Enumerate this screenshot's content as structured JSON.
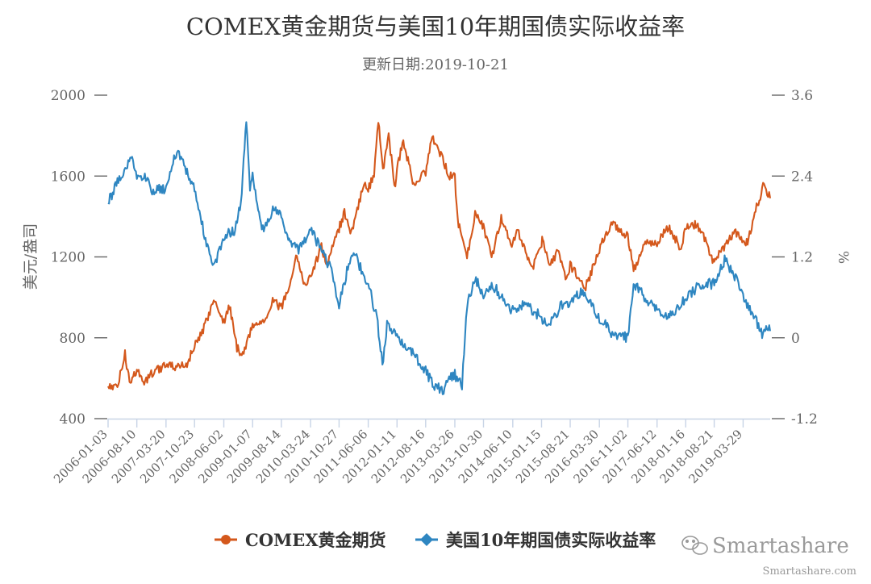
{
  "chart_data": {
    "type": "line",
    "title": "COMEX黄金期货与美国10年期国债实际收益率",
    "subtitle": "更新日期:2019-10-21",
    "ylabel_left": "美元/盎司",
    "ylabel_right": "%",
    "ylim_left": [
      400,
      2000
    ],
    "ylim_right": [
      -1.2,
      3.6
    ],
    "yticks_left": [
      "400",
      "800",
      "1200",
      "1600",
      "2000"
    ],
    "yticks_right": [
      "-1.2",
      "0",
      "1.2",
      "2.4",
      "3.6"
    ],
    "xlim": [
      "2006-01-03",
      "2019-10-21"
    ],
    "x_tick_labels": [
      "2006-01-03",
      "2006-08-10",
      "2007-03-20",
      "2007-10-23",
      "2008-06-02",
      "2009-01-07",
      "2009-08-14",
      "2010-03-24",
      "2010-10-27",
      "2011-06-06",
      "2012-01-11",
      "2012-08-16",
      "2013-03-26",
      "2013-10-30",
      "2014-06-10",
      "2015-01-15",
      "2015-08-21",
      "2016-03-30",
      "2016-11-02",
      "2017-06-12",
      "2018-01-16",
      "2018-08-21",
      "2019-03-29"
    ],
    "legend_position": "bottom",
    "grid": false,
    "series": [
      {
        "name": "COMEX黄金期货",
        "axis": "left",
        "color": "#d4581c",
        "marker": "circle",
        "points": [
          [
            "2006-01-03",
            560
          ],
          [
            "2006-03-15",
            555
          ],
          [
            "2006-05-12",
            720
          ],
          [
            "2006-06-15",
            580
          ],
          [
            "2006-08-10",
            640
          ],
          [
            "2006-10-05",
            575
          ],
          [
            "2006-12-20",
            640
          ],
          [
            "2007-03-20",
            660
          ],
          [
            "2007-06-20",
            655
          ],
          [
            "2007-08-20",
            665
          ],
          [
            "2007-10-23",
            760
          ],
          [
            "2007-12-20",
            820
          ],
          [
            "2008-03-17",
            990
          ],
          [
            "2008-06-02",
            880
          ],
          [
            "2008-07-15",
            960
          ],
          [
            "2008-09-10",
            750
          ],
          [
            "2008-10-24",
            720
          ],
          [
            "2009-01-07",
            860
          ],
          [
            "2009-04-10",
            890
          ],
          [
            "2009-06-01",
            980
          ],
          [
            "2009-08-14",
            950
          ],
          [
            "2009-11-01",
            1100
          ],
          [
            "2009-12-03",
            1220
          ],
          [
            "2010-02-05",
            1060
          ],
          [
            "2010-03-24",
            1100
          ],
          [
            "2010-06-15",
            1250
          ],
          [
            "2010-07-28",
            1160
          ],
          [
            "2010-10-27",
            1340
          ],
          [
            "2010-12-07",
            1420
          ],
          [
            "2011-01-28",
            1320
          ],
          [
            "2011-04-28",
            1550
          ],
          [
            "2011-06-06",
            1540
          ],
          [
            "2011-07-20",
            1600
          ],
          [
            "2011-08-22",
            1880
          ],
          [
            "2011-09-10",
            1760
          ],
          [
            "2011-09-26",
            1620
          ],
          [
            "2011-11-08",
            1790
          ],
          [
            "2011-12-29",
            1540
          ],
          [
            "2012-01-11",
            1640
          ],
          [
            "2012-02-28",
            1780
          ],
          [
            "2012-05-16",
            1550
          ],
          [
            "2012-08-16",
            1620
          ],
          [
            "2012-10-05",
            1790
          ],
          [
            "2012-12-10",
            1700
          ],
          [
            "2013-02-15",
            1600
          ],
          [
            "2013-03-26",
            1600
          ],
          [
            "2013-04-16",
            1380
          ],
          [
            "2013-06-27",
            1200
          ],
          [
            "2013-08-27",
            1420
          ],
          [
            "2013-10-30",
            1350
          ],
          [
            "2013-12-31",
            1200
          ],
          [
            "2014-03-14",
            1390
          ],
          [
            "2014-06-10",
            1260
          ],
          [
            "2014-07-10",
            1340
          ],
          [
            "2014-11-07",
            1140
          ],
          [
            "2015-01-15",
            1260
          ],
          [
            "2015-01-23",
            1300
          ],
          [
            "2015-03-17",
            1150
          ],
          [
            "2015-05-18",
            1230
          ],
          [
            "2015-07-24",
            1080
          ],
          [
            "2015-08-21",
            1160
          ],
          [
            "2015-12-17",
            1050
          ],
          [
            "2016-03-30",
            1240
          ],
          [
            "2016-07-06",
            1370
          ],
          [
            "2016-11-02",
            1300
          ],
          [
            "2016-12-15",
            1130
          ],
          [
            "2017-02-27",
            1260
          ],
          [
            "2017-06-12",
            1270
          ],
          [
            "2017-09-08",
            1350
          ],
          [
            "2017-12-12",
            1240
          ],
          [
            "2018-01-16",
            1340
          ],
          [
            "2018-04-11",
            1360
          ],
          [
            "2018-06-15",
            1280
          ],
          [
            "2018-08-16",
            1175
          ],
          [
            "2018-08-21",
            1190
          ],
          [
            "2019-01-31",
            1320
          ],
          [
            "2019-03-29",
            1290
          ],
          [
            "2019-05-02",
            1270
          ],
          [
            "2019-06-25",
            1420
          ],
          [
            "2019-09-04",
            1560
          ],
          [
            "2019-10-21",
            1490
          ]
        ]
      },
      {
        "name": "美国10年期国债实际收益率",
        "axis": "right",
        "color": "#2e86c1",
        "marker": "diamond",
        "points": [
          [
            "2006-01-03",
            2.0
          ],
          [
            "2006-03-15",
            2.3
          ],
          [
            "2006-06-28",
            2.7
          ],
          [
            "2006-08-10",
            2.4
          ],
          [
            "2006-10-10",
            2.4
          ],
          [
            "2006-12-05",
            2.2
          ],
          [
            "2007-03-20",
            2.2
          ],
          [
            "2007-06-12",
            2.8
          ],
          [
            "2007-08-20",
            2.5
          ],
          [
            "2007-10-23",
            2.2
          ],
          [
            "2008-01-22",
            1.4
          ],
          [
            "2008-03-17",
            1.05
          ],
          [
            "2008-06-02",
            1.5
          ],
          [
            "2008-08-20",
            1.6
          ],
          [
            "2008-10-10",
            2.0
          ],
          [
            "2008-11-20",
            3.2
          ],
          [
            "2008-12-18",
            2.2
          ],
          [
            "2009-01-07",
            2.4
          ],
          [
            "2009-03-18",
            1.6
          ],
          [
            "2009-06-10",
            1.9
          ],
          [
            "2009-08-14",
            1.8
          ],
          [
            "2009-10-05",
            1.5
          ],
          [
            "2009-12-15",
            1.3
          ],
          [
            "2010-03-24",
            1.6
          ],
          [
            "2010-06-15",
            1.3
          ],
          [
            "2010-08-31",
            1.0
          ],
          [
            "2010-10-27",
            0.5
          ],
          [
            "2011-01-10",
            1.1
          ],
          [
            "2011-02-15",
            1.3
          ],
          [
            "2011-04-15",
            1.0
          ],
          [
            "2011-06-06",
            0.8
          ],
          [
            "2011-08-10",
            0.3
          ],
          [
            "2011-09-22",
            -0.4
          ],
          [
            "2011-10-27",
            0.2
          ],
          [
            "2012-01-11",
            0.0
          ],
          [
            "2012-05-01",
            -0.2
          ],
          [
            "2012-08-16",
            -0.5
          ],
          [
            "2012-10-15",
            -0.7
          ],
          [
            "2012-12-31",
            -0.8
          ],
          [
            "2013-01-20",
            -0.65
          ],
          [
            "2013-03-26",
            -0.55
          ],
          [
            "2013-05-20",
            -0.7
          ],
          [
            "2013-06-27",
            0.5
          ],
          [
            "2013-08-27",
            0.9
          ],
          [
            "2013-10-30",
            0.6
          ],
          [
            "2013-12-31",
            0.8
          ],
          [
            "2014-06-10",
            0.4
          ],
          [
            "2014-09-15",
            0.5
          ],
          [
            "2015-01-15",
            0.3
          ],
          [
            "2015-03-10",
            0.15
          ],
          [
            "2015-06-15",
            0.5
          ],
          [
            "2015-08-21",
            0.5
          ],
          [
            "2015-11-10",
            0.7
          ],
          [
            "2016-03-30",
            0.3
          ],
          [
            "2016-07-06",
            0.05
          ],
          [
            "2016-11-02",
            0.0
          ],
          [
            "2016-12-15",
            0.8
          ],
          [
            "2017-03-15",
            0.6
          ],
          [
            "2017-06-12",
            0.4
          ],
          [
            "2017-09-08",
            0.3
          ],
          [
            "2017-12-12",
            0.5
          ],
          [
            "2018-01-16",
            0.6
          ],
          [
            "2018-05-17",
            0.8
          ],
          [
            "2018-08-21",
            0.8
          ],
          [
            "2018-11-08",
            1.15
          ],
          [
            "2019-01-31",
            0.9
          ],
          [
            "2019-03-29",
            0.6
          ],
          [
            "2019-06-25",
            0.3
          ],
          [
            "2019-08-28",
            0.0
          ],
          [
            "2019-09-13",
            0.15
          ],
          [
            "2019-10-21",
            0.1
          ]
        ]
      }
    ]
  },
  "watermark": {
    "brand": "Smartashare",
    "url": "Smartashare.com"
  }
}
